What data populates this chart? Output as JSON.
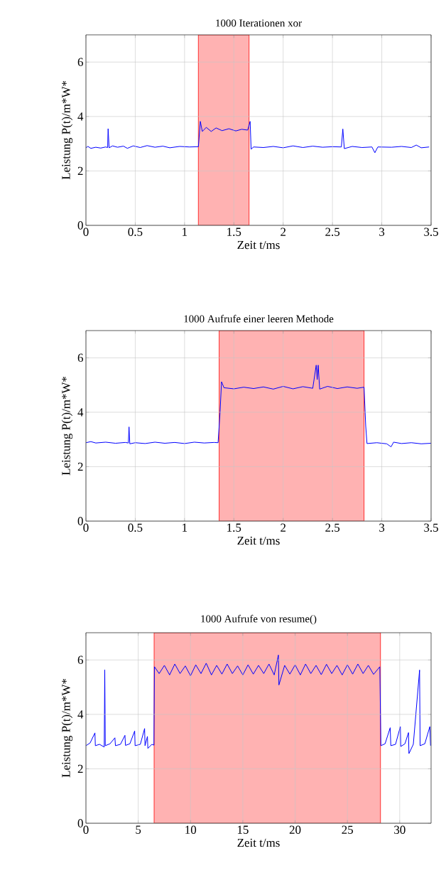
{
  "chart_data": [
    {
      "type": "line",
      "title": "1000 Iterationen xor",
      "xlabel": "Zeit t/ms",
      "ylabel": "Leistung P(t)/m*W*",
      "xlim": [
        0,
        3.5
      ],
      "ylim": [
        0,
        7
      ],
      "xticks": [
        0,
        0.5,
        1,
        1.5,
        2,
        2.5,
        3,
        3.5
      ],
      "yticks": [
        0,
        2,
        4,
        6
      ],
      "grid": true,
      "series": [
        {
          "color": "#0000ff",
          "x": [
            0,
            0.02,
            0.05,
            0.1,
            0.15,
            0.2,
            0.22,
            0.225,
            0.235,
            0.27,
            0.32,
            0.38,
            0.42,
            0.48,
            0.55,
            0.62,
            0.7,
            0.78,
            0.85,
            0.95,
            1.05,
            1.14,
            1.16,
            1.18,
            1.22,
            1.27,
            1.32,
            1.38,
            1.45,
            1.52,
            1.58,
            1.64,
            1.665,
            1.675,
            1.7,
            1.8,
            1.9,
            2.0,
            2.1,
            2.2,
            2.3,
            2.4,
            2.5,
            2.59,
            2.605,
            2.62,
            2.7,
            2.8,
            2.9,
            2.93,
            2.96,
            3.1,
            3.2,
            3.3,
            3.35,
            3.4,
            3.48
          ],
          "values": [
            2.85,
            2.9,
            2.83,
            2.87,
            2.84,
            2.88,
            2.86,
            3.55,
            2.85,
            2.92,
            2.87,
            2.91,
            2.83,
            2.92,
            2.86,
            2.93,
            2.87,
            2.91,
            2.85,
            2.9,
            2.88,
            2.89,
            3.82,
            3.45,
            3.6,
            3.45,
            3.58,
            3.48,
            3.55,
            3.47,
            3.53,
            3.5,
            3.82,
            2.8,
            2.88,
            2.86,
            2.9,
            2.85,
            2.92,
            2.86,
            2.91,
            2.87,
            2.89,
            2.88,
            3.54,
            2.82,
            2.9,
            2.86,
            2.88,
            2.67,
            2.88,
            2.87,
            2.9,
            2.86,
            2.95,
            2.85,
            2.88
          ]
        }
      ],
      "bands": [
        {
          "axis": "x",
          "from": 1.14,
          "to": 1.654,
          "color": "#ffb2b2"
        }
      ]
    },
    {
      "type": "line",
      "title": "1000 Aufrufe einer leeren Methode",
      "xlabel": "Zeit t/ms",
      "ylabel": "Leistung P(t)/m*W*",
      "xlim": [
        0,
        3.5
      ],
      "ylim": [
        0,
        7
      ],
      "xticks": [
        0,
        0.5,
        1,
        1.5,
        2,
        2.5,
        3,
        3.5
      ],
      "yticks": [
        0,
        2,
        4,
        6
      ],
      "grid": true,
      "series": [
        {
          "color": "#0000ff",
          "x": [
            0,
            0.05,
            0.1,
            0.2,
            0.3,
            0.4,
            0.43,
            0.437,
            0.445,
            0.5,
            0.6,
            0.7,
            0.8,
            0.9,
            1.0,
            1.1,
            1.2,
            1.3,
            1.34,
            1.36,
            1.375,
            1.4,
            1.5,
            1.6,
            1.7,
            1.8,
            1.9,
            2.0,
            2.1,
            2.2,
            2.3,
            2.335,
            2.345,
            2.355,
            2.37,
            2.45,
            2.55,
            2.65,
            2.75,
            2.82,
            2.837,
            2.85,
            2.95,
            3.05,
            3.094,
            3.12,
            3.2,
            3.3,
            3.4,
            3.5
          ],
          "values": [
            2.88,
            2.92,
            2.87,
            2.9,
            2.86,
            2.89,
            2.87,
            3.46,
            2.84,
            2.88,
            2.85,
            2.9,
            2.86,
            2.89,
            2.85,
            2.9,
            2.87,
            2.89,
            2.88,
            4.0,
            5.12,
            4.9,
            4.86,
            4.92,
            4.87,
            4.93,
            4.85,
            4.95,
            4.86,
            4.94,
            4.88,
            5.73,
            5.2,
            5.73,
            4.85,
            4.95,
            4.87,
            4.93,
            4.88,
            4.92,
            3.5,
            2.85,
            2.88,
            2.84,
            2.73,
            2.9,
            2.85,
            2.88,
            2.84,
            2.86
          ]
        }
      ],
      "bands": [
        {
          "axis": "x",
          "from": 1.351,
          "to": 2.82,
          "color": "#ffb2b2"
        }
      ]
    },
    {
      "type": "line",
      "title": "1000 Aufrufe von resume()",
      "xlabel": "Zeit t/ms",
      "ylabel": "Leistung P(t)/m*W*",
      "xlim": [
        0,
        33
      ],
      "ylim": [
        0,
        7
      ],
      "xticks": [
        0,
        5,
        10,
        15,
        20,
        25,
        30
      ],
      "yticks": [
        0,
        2,
        4,
        6
      ],
      "grid": true,
      "series": [
        {
          "color": "#0000ff",
          "x": [
            0,
            0.4,
            0.86,
            0.9,
            1.3,
            1.75,
            1.8,
            1.85,
            2.3,
            2.77,
            2.82,
            3.3,
            3.73,
            3.78,
            4.2,
            4.66,
            4.7,
            5.2,
            5.61,
            5.65,
            5.88,
            5.92,
            6.3,
            6.5,
            6.55,
            7.0,
            7.5,
            8.0,
            8.5,
            9.0,
            9.5,
            10.0,
            10.5,
            11.0,
            11.5,
            12.0,
            12.5,
            13.0,
            13.5,
            14.0,
            14.5,
            15.0,
            15.5,
            16.0,
            16.5,
            17.0,
            17.5,
            18.0,
            18.4,
            18.45,
            19.0,
            19.5,
            20.0,
            20.5,
            21.0,
            21.5,
            22.0,
            22.5,
            23.0,
            23.5,
            24.0,
            24.5,
            25.0,
            25.5,
            26.0,
            26.5,
            27.0,
            27.5,
            28.1,
            28.2,
            28.6,
            29.09,
            29.15,
            29.6,
            30.06,
            30.1,
            30.5,
            30.84,
            30.88,
            31.3,
            31.9,
            31.95,
            32.4,
            32.88,
            32.95
          ],
          "values": [
            2.85,
            2.95,
            3.32,
            2.85,
            2.9,
            2.8,
            5.64,
            2.85,
            2.92,
            3.14,
            2.85,
            2.9,
            3.23,
            2.86,
            2.92,
            3.39,
            2.85,
            2.9,
            3.48,
            2.85,
            3.19,
            2.75,
            2.9,
            2.87,
            5.75,
            5.5,
            5.8,
            5.45,
            5.85,
            5.5,
            5.78,
            5.42,
            5.82,
            5.5,
            5.88,
            5.45,
            5.8,
            5.48,
            5.85,
            5.5,
            5.78,
            5.45,
            5.82,
            5.48,
            5.8,
            5.5,
            5.85,
            5.45,
            6.18,
            5.08,
            5.8,
            5.48,
            5.82,
            5.45,
            5.85,
            5.5,
            5.8,
            5.46,
            5.84,
            5.5,
            5.8,
            5.45,
            5.82,
            5.48,
            5.85,
            5.5,
            5.8,
            5.47,
            5.75,
            2.85,
            2.92,
            3.51,
            2.85,
            2.9,
            3.55,
            2.82,
            2.92,
            3.33,
            2.56,
            2.9,
            5.63,
            2.85,
            2.92,
            3.55,
            2.85
          ]
        }
      ],
      "bands": [
        {
          "axis": "x",
          "from": 6.52,
          "to": 28.16,
          "color": "#ffb2b2"
        }
      ]
    }
  ]
}
